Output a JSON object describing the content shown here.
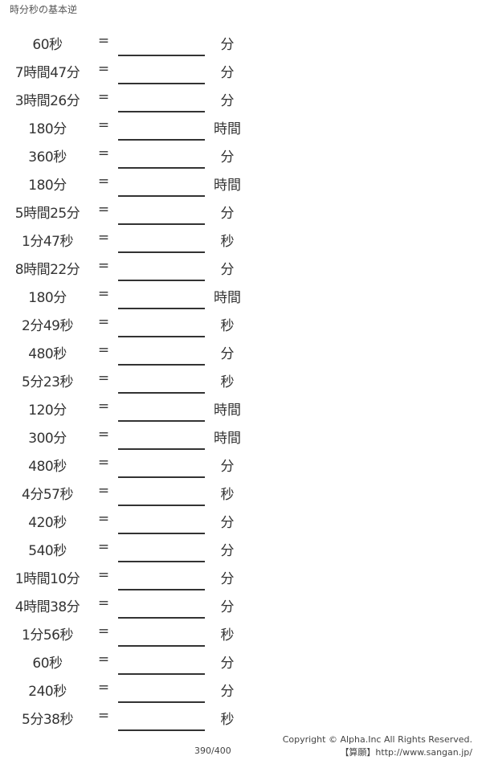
{
  "title": "時分秒の基本逆",
  "equals": "=",
  "problems": [
    {
      "q": "60秒",
      "unit": "分"
    },
    {
      "q": "7時間47分",
      "unit": "分"
    },
    {
      "q": "3時間26分",
      "unit": "分"
    },
    {
      "q": "180分",
      "unit": "時間"
    },
    {
      "q": "360秒",
      "unit": "分"
    },
    {
      "q": "180分",
      "unit": "時間"
    },
    {
      "q": "5時間25分",
      "unit": "分"
    },
    {
      "q": "1分47秒",
      "unit": "秒"
    },
    {
      "q": "8時間22分",
      "unit": "分"
    },
    {
      "q": "180分",
      "unit": "時間"
    },
    {
      "q": "2分49秒",
      "unit": "秒"
    },
    {
      "q": "480秒",
      "unit": "分"
    },
    {
      "q": "5分23秒",
      "unit": "秒"
    },
    {
      "q": "120分",
      "unit": "時間"
    },
    {
      "q": "300分",
      "unit": "時間"
    },
    {
      "q": "480秒",
      "unit": "分"
    },
    {
      "q": "4分57秒",
      "unit": "秒"
    },
    {
      "q": "420秒",
      "unit": "分"
    },
    {
      "q": "540秒",
      "unit": "分"
    },
    {
      "q": "1時間10分",
      "unit": "分"
    },
    {
      "q": "4時間38分",
      "unit": "分"
    },
    {
      "q": "1分56秒",
      "unit": "秒"
    },
    {
      "q": "60秒",
      "unit": "分"
    },
    {
      "q": "240秒",
      "unit": "分"
    },
    {
      "q": "5分38秒",
      "unit": "秒"
    }
  ],
  "footer": {
    "page": "390/400",
    "copyright": "Copyright © Alpha.Inc All Rights Reserved.",
    "site": "【算願】http://www.sangan.jp/"
  }
}
